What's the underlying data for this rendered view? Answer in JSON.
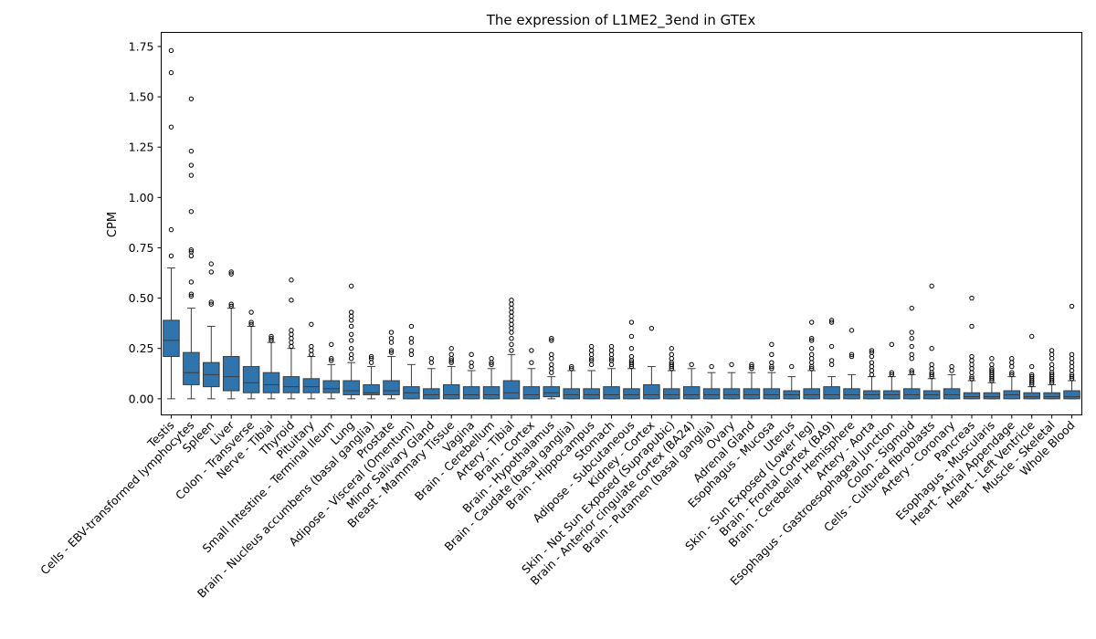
{
  "chart_data": {
    "type": "box",
    "title": "The expression of L1ME2_3end in GTEx",
    "xlabel": "",
    "ylabel": "CPM",
    "ylim": [
      -0.08,
      1.82
    ],
    "yticks": [
      0.0,
      0.25,
      0.5,
      0.75,
      1.0,
      1.25,
      1.5,
      1.75
    ],
    "ytick_labels": [
      "0.00",
      "0.25",
      "0.50",
      "0.75",
      "1.00",
      "1.25",
      "1.50",
      "1.75"
    ],
    "grid": false,
    "box_color": "#2f74ad",
    "categories": [
      {
        "name": "Testis",
        "whislo": 0.0,
        "q1": 0.21,
        "med": 0.29,
        "q3": 0.39,
        "whishi": 0.65,
        "fliers": [
          0.71,
          0.84,
          1.35,
          1.62,
          1.73
        ]
      },
      {
        "name": "Cells - EBV-transformed lymphocytes",
        "whislo": 0.0,
        "q1": 0.07,
        "med": 0.13,
        "q3": 0.23,
        "whishi": 0.45,
        "fliers": [
          0.51,
          0.52,
          0.58,
          0.71,
          0.73,
          0.74,
          0.93,
          1.11,
          1.16,
          1.23,
          1.49
        ]
      },
      {
        "name": "Spleen",
        "whislo": 0.0,
        "q1": 0.06,
        "med": 0.12,
        "q3": 0.18,
        "whishi": 0.36,
        "fliers": [
          0.47,
          0.48,
          0.63,
          0.67
        ]
      },
      {
        "name": "Liver",
        "whislo": 0.0,
        "q1": 0.04,
        "med": 0.11,
        "q3": 0.21,
        "whishi": 0.45,
        "fliers": [
          0.46,
          0.47,
          0.62,
          0.63
        ]
      },
      {
        "name": "Colon - Transverse",
        "whislo": 0.0,
        "q1": 0.03,
        "med": 0.08,
        "q3": 0.16,
        "whishi": 0.36,
        "fliers": [
          0.37,
          0.38,
          0.43
        ]
      },
      {
        "name": "Nerve - Tibial",
        "whislo": 0.0,
        "q1": 0.03,
        "med": 0.07,
        "q3": 0.13,
        "whishi": 0.28,
        "fliers": [
          0.29,
          0.3,
          0.31
        ]
      },
      {
        "name": "Thyroid",
        "whislo": 0.0,
        "q1": 0.03,
        "med": 0.06,
        "q3": 0.11,
        "whishi": 0.25,
        "fliers": [
          0.26,
          0.28,
          0.3,
          0.32,
          0.34,
          0.49,
          0.59
        ]
      },
      {
        "name": "Pituitary",
        "whislo": 0.0,
        "q1": 0.03,
        "med": 0.06,
        "q3": 0.1,
        "whishi": 0.21,
        "fliers": [
          0.22,
          0.24,
          0.26,
          0.37
        ]
      },
      {
        "name": "Small Intestine - Terminal Ileum",
        "whislo": 0.0,
        "q1": 0.03,
        "med": 0.05,
        "q3": 0.09,
        "whishi": 0.17,
        "fliers": [
          0.19,
          0.2,
          0.27
        ]
      },
      {
        "name": "Lung",
        "whislo": 0.0,
        "q1": 0.02,
        "med": 0.04,
        "q3": 0.09,
        "whishi": 0.18,
        "fliers": [
          0.2,
          0.22,
          0.25,
          0.29,
          0.32,
          0.36,
          0.39,
          0.41,
          0.43,
          0.56
        ]
      },
      {
        "name": "Brain - Nucleus accumbens (basal ganglia)",
        "whislo": 0.0,
        "q1": 0.02,
        "med": 0.03,
        "q3": 0.07,
        "whishi": 0.16,
        "fliers": [
          0.18,
          0.2,
          0.21
        ]
      },
      {
        "name": "Prostate",
        "whislo": 0.0,
        "q1": 0.02,
        "med": 0.04,
        "q3": 0.09,
        "whishi": 0.21,
        "fliers": [
          0.23,
          0.24,
          0.28,
          0.3,
          0.33
        ]
      },
      {
        "name": "Adipose - Visceral (Omentum)",
        "whislo": 0.0,
        "q1": 0.0,
        "med": 0.03,
        "q3": 0.06,
        "whishi": 0.17,
        "fliers": [
          0.22,
          0.24,
          0.28,
          0.3,
          0.36
        ]
      },
      {
        "name": "Minor Salivary Gland",
        "whislo": 0.0,
        "q1": 0.0,
        "med": 0.02,
        "q3": 0.05,
        "whishi": 0.15,
        "fliers": [
          0.18,
          0.2
        ]
      },
      {
        "name": "Breast - Mammary Tissue",
        "whislo": 0.0,
        "q1": 0.0,
        "med": 0.02,
        "q3": 0.07,
        "whishi": 0.16,
        "fliers": [
          0.18,
          0.19,
          0.2,
          0.22,
          0.25
        ]
      },
      {
        "name": "Vagina",
        "whislo": 0.0,
        "q1": 0.0,
        "med": 0.02,
        "q3": 0.06,
        "whishi": 0.14,
        "fliers": [
          0.16,
          0.18,
          0.22
        ]
      },
      {
        "name": "Brain - Cerebellum",
        "whislo": 0.0,
        "q1": 0.0,
        "med": 0.02,
        "q3": 0.06,
        "whishi": 0.15,
        "fliers": [
          0.17,
          0.18,
          0.2
        ]
      },
      {
        "name": "Artery - Tibial",
        "whislo": 0.0,
        "q1": 0.0,
        "med": 0.03,
        "q3": 0.09,
        "whishi": 0.22,
        "fliers": [
          0.24,
          0.27,
          0.3,
          0.33,
          0.35,
          0.37,
          0.39,
          0.41,
          0.43,
          0.45,
          0.47,
          0.49
        ]
      },
      {
        "name": "Brain - Cortex",
        "whislo": 0.0,
        "q1": 0.0,
        "med": 0.02,
        "q3": 0.06,
        "whishi": 0.15,
        "fliers": [
          0.18,
          0.24
        ]
      },
      {
        "name": "Brain - Hypothalamus",
        "whislo": 0.0,
        "q1": 0.01,
        "med": 0.03,
        "q3": 0.06,
        "whishi": 0.11,
        "fliers": [
          0.13,
          0.15,
          0.17,
          0.2,
          0.22,
          0.29,
          0.3
        ]
      },
      {
        "name": "Brain - Caudate (basal ganglia)",
        "whislo": 0.0,
        "q1": 0.0,
        "med": 0.02,
        "q3": 0.05,
        "whishi": 0.14,
        "fliers": [
          0.15,
          0.16
        ]
      },
      {
        "name": "Brain - Hippocampus",
        "whislo": 0.0,
        "q1": 0.0,
        "med": 0.02,
        "q3": 0.05,
        "whishi": 0.14,
        "fliers": [
          0.17,
          0.19,
          0.2,
          0.22,
          0.24,
          0.26
        ]
      },
      {
        "name": "Stomach",
        "whislo": 0.0,
        "q1": 0.0,
        "med": 0.02,
        "q3": 0.06,
        "whishi": 0.15,
        "fliers": [
          0.17,
          0.19,
          0.2,
          0.22,
          0.24,
          0.26
        ]
      },
      {
        "name": "Adipose - Subcutaneous",
        "whislo": 0.0,
        "q1": 0.0,
        "med": 0.02,
        "q3": 0.05,
        "whishi": 0.15,
        "fliers": [
          0.16,
          0.17,
          0.18,
          0.19,
          0.21,
          0.25,
          0.31,
          0.38
        ]
      },
      {
        "name": "Kidney - Cortex",
        "whislo": 0.0,
        "q1": 0.0,
        "med": 0.02,
        "q3": 0.07,
        "whishi": 0.16,
        "fliers": [
          0.35
        ]
      },
      {
        "name": "Skin - Not Sun Exposed (Suprapubic)",
        "whislo": 0.0,
        "q1": 0.0,
        "med": 0.02,
        "q3": 0.05,
        "whishi": 0.14,
        "fliers": [
          0.15,
          0.16,
          0.17,
          0.18,
          0.2,
          0.22,
          0.25
        ]
      },
      {
        "name": "Brain - Anterior cingulate cortex (BA24)",
        "whislo": 0.0,
        "q1": 0.0,
        "med": 0.02,
        "q3": 0.06,
        "whishi": 0.15,
        "fliers": [
          0.17
        ]
      },
      {
        "name": "Brain - Putamen (basal ganglia)",
        "whislo": 0.0,
        "q1": 0.0,
        "med": 0.02,
        "q3": 0.05,
        "whishi": 0.13,
        "fliers": [
          0.16
        ]
      },
      {
        "name": "Ovary",
        "whislo": 0.0,
        "q1": 0.0,
        "med": 0.02,
        "q3": 0.05,
        "whishi": 0.13,
        "fliers": [
          0.17
        ]
      },
      {
        "name": "Adrenal Gland",
        "whislo": 0.0,
        "q1": 0.0,
        "med": 0.02,
        "q3": 0.05,
        "whishi": 0.13,
        "fliers": [
          0.15,
          0.16,
          0.17
        ]
      },
      {
        "name": "Esophagus - Mucosa",
        "whislo": 0.0,
        "q1": 0.0,
        "med": 0.02,
        "q3": 0.05,
        "whishi": 0.13,
        "fliers": [
          0.15,
          0.16,
          0.18,
          0.22,
          0.27
        ]
      },
      {
        "name": "Uterus",
        "whislo": 0.0,
        "q1": 0.0,
        "med": 0.02,
        "q3": 0.04,
        "whishi": 0.11,
        "fliers": [
          0.16
        ]
      },
      {
        "name": "Skin - Sun Exposed (Lower leg)",
        "whislo": 0.0,
        "q1": 0.0,
        "med": 0.02,
        "q3": 0.05,
        "whishi": 0.14,
        "fliers": [
          0.15,
          0.16,
          0.18,
          0.2,
          0.22,
          0.25,
          0.29,
          0.3,
          0.38
        ]
      },
      {
        "name": "Brain - Frontal Cortex (BA9)",
        "whislo": 0.0,
        "q1": 0.0,
        "med": 0.02,
        "q3": 0.06,
        "whishi": 0.11,
        "fliers": [
          0.17,
          0.19,
          0.26,
          0.38,
          0.39
        ]
      },
      {
        "name": "Brain - Cerebellar Hemisphere",
        "whislo": 0.0,
        "q1": 0.0,
        "med": 0.02,
        "q3": 0.05,
        "whishi": 0.12,
        "fliers": [
          0.21,
          0.22,
          0.34
        ]
      },
      {
        "name": "Artery - Aorta",
        "whislo": 0.0,
        "q1": 0.0,
        "med": 0.02,
        "q3": 0.04,
        "whishi": 0.11,
        "fliers": [
          0.12,
          0.14,
          0.16,
          0.18,
          0.21,
          0.23,
          0.24
        ]
      },
      {
        "name": "Esophagus - Gastroesophageal Junction",
        "whislo": 0.0,
        "q1": 0.0,
        "med": 0.02,
        "q3": 0.04,
        "whishi": 0.11,
        "fliers": [
          0.12,
          0.13,
          0.27
        ]
      },
      {
        "name": "Colon - Sigmoid",
        "whislo": 0.0,
        "q1": 0.0,
        "med": 0.02,
        "q3": 0.05,
        "whishi": 0.12,
        "fliers": [
          0.13,
          0.14,
          0.2,
          0.22,
          0.26,
          0.3,
          0.33,
          0.45
        ]
      },
      {
        "name": "Cells - Cultured fibroblasts",
        "whislo": 0.0,
        "q1": 0.0,
        "med": 0.02,
        "q3": 0.04,
        "whishi": 0.1,
        "fliers": [
          0.11,
          0.12,
          0.13,
          0.15,
          0.17,
          0.25,
          0.56
        ]
      },
      {
        "name": "Artery - Coronary",
        "whislo": 0.0,
        "q1": 0.0,
        "med": 0.02,
        "q3": 0.05,
        "whishi": 0.12,
        "fliers": [
          0.14,
          0.16
        ]
      },
      {
        "name": "Pancreas",
        "whislo": 0.0,
        "q1": 0.0,
        "med": 0.01,
        "q3": 0.03,
        "whishi": 0.09,
        "fliers": [
          0.1,
          0.11,
          0.13,
          0.15,
          0.17,
          0.19,
          0.21,
          0.36,
          0.5
        ]
      },
      {
        "name": "Esophagus - Muscularis",
        "whislo": 0.0,
        "q1": 0.0,
        "med": 0.01,
        "q3": 0.03,
        "whishi": 0.08,
        "fliers": [
          0.09,
          0.1,
          0.11,
          0.12,
          0.13,
          0.14,
          0.15,
          0.17,
          0.2
        ]
      },
      {
        "name": "Heart - Atrial Appendage",
        "whislo": 0.0,
        "q1": 0.0,
        "med": 0.02,
        "q3": 0.04,
        "whishi": 0.11,
        "fliers": [
          0.12,
          0.13,
          0.16,
          0.18,
          0.2
        ]
      },
      {
        "name": "Heart - Left Ventricle",
        "whislo": 0.0,
        "q1": 0.0,
        "med": 0.01,
        "q3": 0.03,
        "whishi": 0.06,
        "fliers": [
          0.07,
          0.08,
          0.09,
          0.1,
          0.11,
          0.12,
          0.16,
          0.31
        ]
      },
      {
        "name": "Muscle - Skeletal",
        "whislo": 0.0,
        "q1": 0.0,
        "med": 0.01,
        "q3": 0.03,
        "whishi": 0.07,
        "fliers": [
          0.08,
          0.09,
          0.1,
          0.11,
          0.12,
          0.13,
          0.15,
          0.17,
          0.2,
          0.22,
          0.24
        ]
      },
      {
        "name": "Whole Blood",
        "whislo": 0.0,
        "q1": 0.0,
        "med": 0.01,
        "q3": 0.04,
        "whishi": 0.09,
        "fliers": [
          0.1,
          0.11,
          0.12,
          0.14,
          0.16,
          0.18,
          0.2,
          0.22,
          0.46
        ]
      }
    ]
  }
}
